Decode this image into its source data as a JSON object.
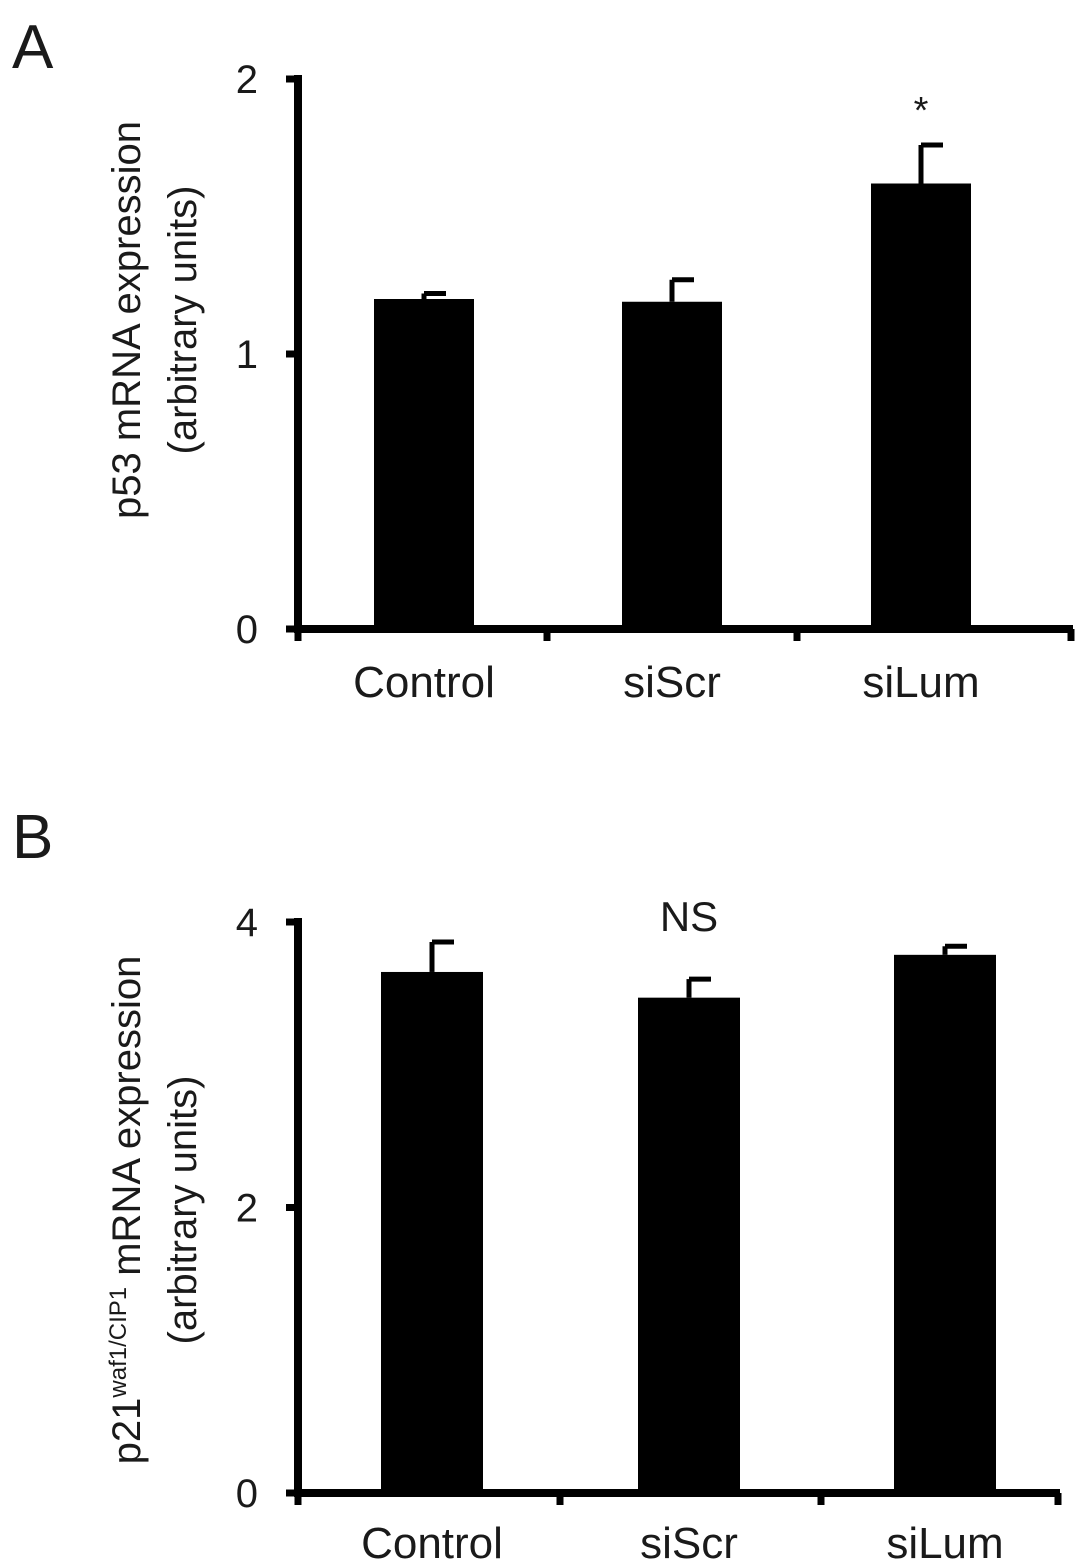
{
  "chart_data": [
    {
      "panel": "A",
      "type": "bar",
      "categories": [
        "Control",
        "siScr",
        "siLum"
      ],
      "values": [
        1.2,
        1.19,
        1.62
      ],
      "errors": [
        0.02,
        0.08,
        0.14
      ],
      "ylabel_line1": "p53 mRNA expression",
      "ylabel_line2": "(arbitrary units)",
      "ylim": [
        0,
        2
      ],
      "yticks": [
        "0",
        "1",
        "2"
      ],
      "ytick_values": [
        0,
        1,
        2
      ],
      "annotations": [
        {
          "category": "siLum",
          "text": "*"
        }
      ],
      "bar_color": "#000000"
    },
    {
      "panel": "B",
      "type": "bar",
      "categories": [
        "Control",
        "siScr",
        "siLum"
      ],
      "values": [
        3.65,
        3.47,
        3.77
      ],
      "errors": [
        0.21,
        0.13,
        0.06
      ],
      "ylabel_line1_main": "p21",
      "ylabel_line1_sup": "waf1/CIP1",
      "ylabel_line1_rest": " mRNA expression",
      "ylabel_line2": "(arbitrary units)",
      "ylim": [
        0,
        4
      ],
      "yticks": [
        "0",
        "2",
        "4"
      ],
      "ytick_values": [
        0,
        2,
        4
      ],
      "annotations": [
        {
          "category": "siScr",
          "text": "NS"
        }
      ],
      "bar_color": "#000000"
    }
  ]
}
